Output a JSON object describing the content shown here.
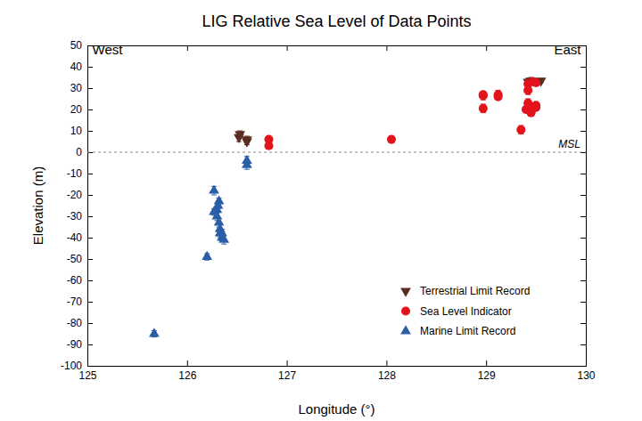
{
  "chart_data": {
    "type": "scatter",
    "title": "LIG Relative Sea Level of Data Points",
    "x_label": "Longitude (°)",
    "y_label": "Elevation (m)",
    "xlim": [
      125,
      130
    ],
    "xticks": [
      125,
      126,
      127,
      128,
      129,
      130
    ],
    "ylim": [
      -100,
      50
    ],
    "yticks": [
      -100,
      -90,
      -80,
      -70,
      -60,
      -50,
      -40,
      -30,
      -20,
      -10,
      0,
      10,
      20,
      30,
      40,
      50
    ],
    "grid": false,
    "legend": "lower right",
    "reference_line": {
      "value": 0,
      "label": "MSL",
      "line_style": "dashed"
    },
    "annotations": [
      {
        "text": "West",
        "x": 125.05,
        "y": 46
      },
      {
        "text": "East",
        "x": 129.95,
        "y": 46
      }
    ],
    "series": [
      {
        "name": "Terrestrial Limit Record",
        "color": "#5b2c20",
        "marker": "triangle-down",
        "x": [
          126.52,
          126.53,
          126.6,
          126.6,
          129.42,
          129.45,
          129.55
        ],
        "values": [
          7,
          8.5,
          6,
          5,
          33,
          33.5,
          33.5
        ],
        "errors": [
          2,
          1.5,
          1.5,
          1.5,
          1.5,
          1.5,
          1
        ]
      },
      {
        "name": "Sea Level Indicator",
        "color": "#e3131b",
        "marker": "circle",
        "x": [
          126.82,
          126.82,
          128.05,
          128.97,
          128.97,
          128.97,
          129.12,
          129.12,
          129.35,
          129.4,
          129.42,
          129.42,
          129.42,
          129.43,
          129.45,
          129.45,
          129.47,
          129.5,
          129.5,
          129.5
        ],
        "values": [
          6,
          3,
          6,
          26.5,
          27,
          20.5,
          27,
          26,
          10.5,
          20,
          32,
          29,
          23,
          21,
          19,
          18.5,
          33,
          21,
          22,
          32.5
        ],
        "errors": [
          1,
          1,
          0.5,
          2,
          1.5,
          2,
          2,
          1.5,
          2,
          1.5,
          2,
          2,
          2,
          1.5,
          2,
          1.5,
          1,
          1.5,
          1.5,
          1
        ]
      },
      {
        "name": "Marine Limit Record",
        "color": "#2b5ea7",
        "marker": "triangle-up",
        "x": [
          125.67,
          126.2,
          126.27,
          126.27,
          126.3,
          126.3,
          126.31,
          126.32,
          126.32,
          126.33,
          126.33,
          126.35,
          126.35,
          126.37,
          126.6,
          126.6
        ],
        "values": [
          -85,
          -49,
          -18,
          -28,
          -27,
          -30,
          -25,
          -23,
          -33,
          -36,
          -38,
          -40,
          -38,
          -41,
          -4,
          -6
        ],
        "errors": [
          1.5,
          1.5,
          2,
          1.5,
          1.5,
          2,
          1.5,
          1.5,
          2,
          2,
          2,
          1.5,
          2,
          2,
          2,
          2
        ]
      }
    ]
  }
}
